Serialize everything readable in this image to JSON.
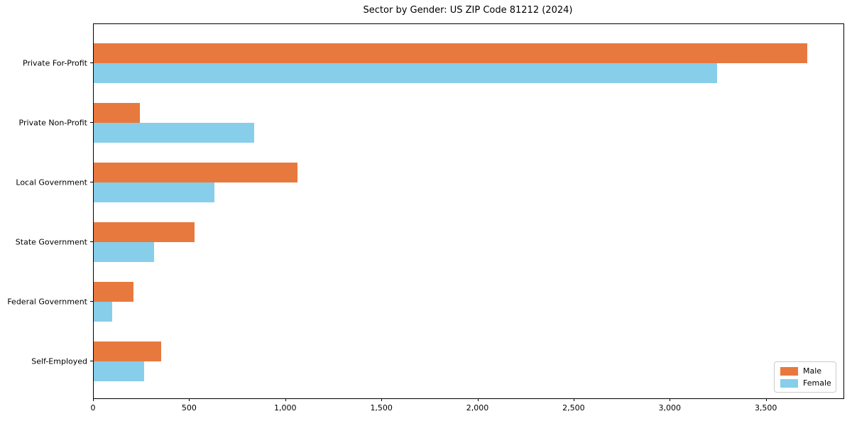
{
  "title": "Sector by Gender: US ZIP Code 81212 (2024)",
  "chart_data": {
    "type": "bar",
    "orientation": "horizontal",
    "title": "Sector by Gender: US ZIP Code 81212 (2024)",
    "categories": [
      "Private For-Profit",
      "Private Non-Profit",
      "Local Government",
      "State Government",
      "Federal Government",
      "Self-Employed"
    ],
    "series": [
      {
        "name": "Male",
        "color": "#e8793e",
        "values": [
          3713,
          240,
          1060,
          525,
          205,
          350
        ]
      },
      {
        "name": "Female",
        "color": "#87ceeb",
        "values": [
          3243,
          835,
          626,
          312,
          96,
          262
        ]
      }
    ],
    "xlabel": "",
    "ylabel": "",
    "xlim": [
      0,
      3900
    ],
    "xticks": [
      0,
      500,
      1000,
      1500,
      2000,
      2500,
      3000,
      3500
    ],
    "xtick_labels": [
      "0",
      "500",
      "1,000",
      "1,500",
      "2,000",
      "2,500",
      "3,000",
      "3,500"
    ],
    "grid": false,
    "legend": {
      "position": "lower right"
    }
  }
}
